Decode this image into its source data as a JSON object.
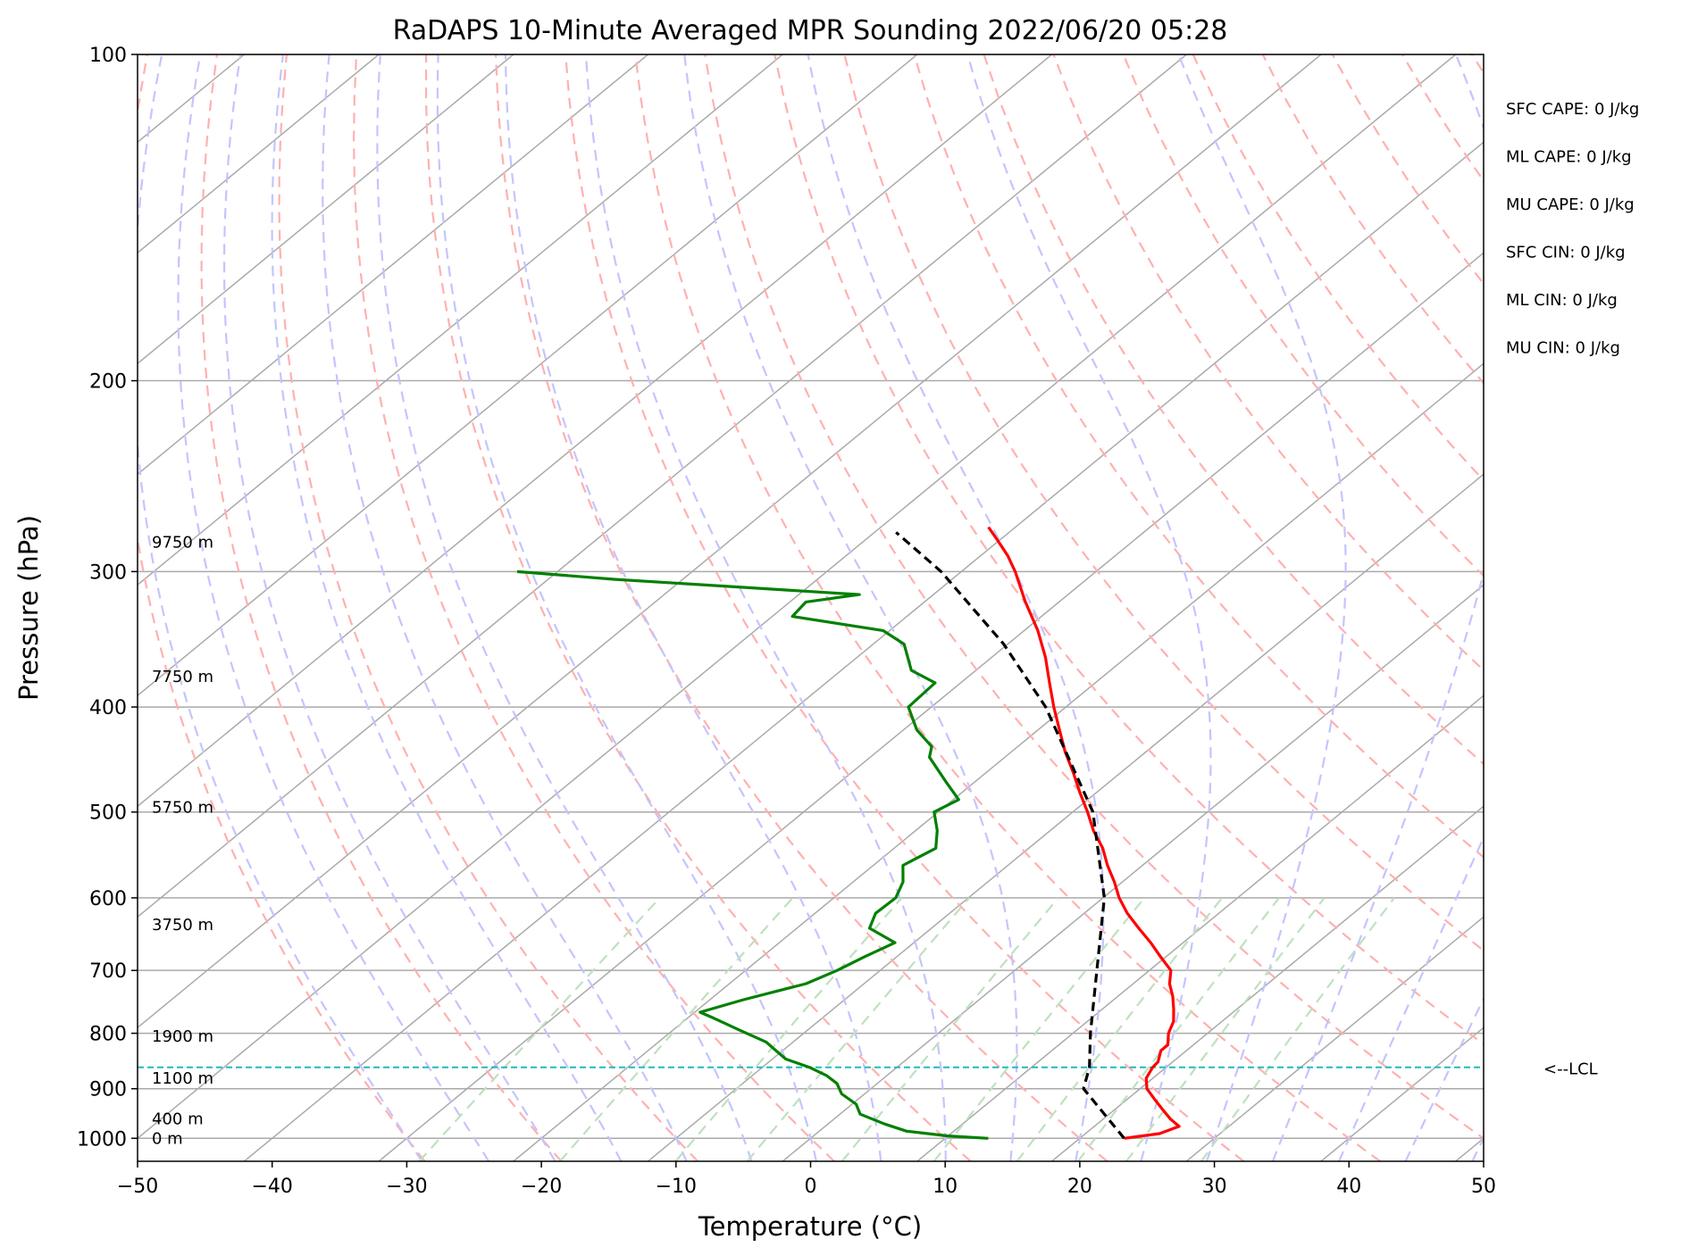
{
  "chart_data": {
    "type": "line",
    "title": "RaDAPS 10-Minute Averaged MPR Sounding 2022/06/20 05:28",
    "xlabel": "Temperature (°C)",
    "ylabel": "Pressure (hPa)",
    "xlim": [
      -50,
      50
    ],
    "ylim": [
      1050,
      100
    ],
    "y_scale": "log",
    "skew": "skew-T",
    "grid": true,
    "x_ticks": [
      -50,
      -40,
      -30,
      -20,
      -10,
      0,
      10,
      20,
      30,
      40,
      50
    ],
    "x_tick_labels": [
      "−50",
      "−40",
      "−30",
      "−20",
      "−10",
      "0",
      "10",
      "20",
      "30",
      "40",
      "50"
    ],
    "y_ticks": [
      1000,
      900,
      800,
      700,
      600,
      500,
      400,
      300,
      200,
      100
    ],
    "y_tick_labels": [
      "1000",
      "900",
      "800",
      "700",
      "600",
      "500",
      "400",
      "300",
      "200",
      "100"
    ],
    "series": [
      {
        "role": "temperature",
        "color": "#ff0000",
        "points": [
          [
            1000,
            23.3
          ],
          [
            990,
            25.5
          ],
          [
            975,
            26.3
          ],
          [
            960,
            25.0
          ],
          [
            940,
            23.5
          ],
          [
            920,
            22.0
          ],
          [
            900,
            20.5
          ],
          [
            880,
            19.5
          ],
          [
            860,
            19.0
          ],
          [
            850,
            18.9
          ],
          [
            830,
            18.1
          ],
          [
            820,
            18.1
          ],
          [
            800,
            17.1
          ],
          [
            780,
            16.4
          ],
          [
            760,
            15.3
          ],
          [
            740,
            14.1
          ],
          [
            720,
            12.7
          ],
          [
            700,
            11.6
          ],
          [
            680,
            9.6
          ],
          [
            660,
            7.6
          ],
          [
            640,
            5.4
          ],
          [
            620,
            3.2
          ],
          [
            600,
            1.2
          ],
          [
            580,
            -0.6
          ],
          [
            560,
            -2.6
          ],
          [
            540,
            -4.5
          ],
          [
            520,
            -6.8
          ],
          [
            500,
            -8.9
          ],
          [
            480,
            -11.2
          ],
          [
            460,
            -13.5
          ],
          [
            440,
            -16.0
          ],
          [
            420,
            -18.4
          ],
          [
            400,
            -20.9
          ],
          [
            380,
            -23.4
          ],
          [
            360,
            -26.0
          ],
          [
            340,
            -29.0
          ],
          [
            320,
            -32.5
          ],
          [
            300,
            -36.0
          ],
          [
            290,
            -38.0
          ],
          [
            280,
            -40.3
          ],
          [
            273,
            -42.0
          ]
        ]
      },
      {
        "role": "dewpoint",
        "color": "#008000",
        "points": [
          [
            1000,
            13.2
          ],
          [
            995,
            10.0
          ],
          [
            985,
            6.5
          ],
          [
            970,
            4.2
          ],
          [
            950,
            1.5
          ],
          [
            930,
            0.3
          ],
          [
            910,
            -1.7
          ],
          [
            890,
            -3.0
          ],
          [
            875,
            -4.5
          ],
          [
            860,
            -6.5
          ],
          [
            845,
            -9.0
          ],
          [
            830,
            -10.5
          ],
          [
            815,
            -12.0
          ],
          [
            795,
            -15.0
          ],
          [
            775,
            -18.0
          ],
          [
            765,
            -19.6
          ],
          [
            745,
            -17.5
          ],
          [
            720,
            -14.3
          ],
          [
            700,
            -13.2
          ],
          [
            680,
            -12.4
          ],
          [
            660,
            -11.4
          ],
          [
            640,
            -14.6
          ],
          [
            620,
            -15.5
          ],
          [
            600,
            -15.4
          ],
          [
            580,
            -16.3
          ],
          [
            560,
            -17.8
          ],
          [
            540,
            -16.9
          ],
          [
            520,
            -18.4
          ],
          [
            500,
            -20.3
          ],
          [
            487,
            -19.6
          ],
          [
            470,
            -22.0
          ],
          [
            445,
            -25.6
          ],
          [
            435,
            -26.4
          ],
          [
            420,
            -29.0
          ],
          [
            400,
            -31.7
          ],
          [
            380,
            -31.9
          ],
          [
            370,
            -34.8
          ],
          [
            350,
            -37.7
          ],
          [
            340,
            -40.5
          ],
          [
            330,
            -48.5
          ],
          [
            320,
            -48.8
          ],
          [
            315,
            -45.5
          ],
          [
            305,
            -65.0
          ],
          [
            300,
            -73.0
          ]
        ]
      },
      {
        "role": "parcel",
        "color": "#000000",
        "dashed": true,
        "points": [
          [
            1000,
            23.3
          ],
          [
            900,
            15.8
          ],
          [
            860,
            14.3
          ],
          [
            800,
            11.3
          ],
          [
            700,
            6.1
          ],
          [
            600,
            0.1
          ],
          [
            500,
            -8.5
          ],
          [
            400,
            -21.5
          ],
          [
            350,
            -30.3
          ],
          [
            300,
            -41.5
          ],
          [
            280,
            -47.2
          ],
          [
            276,
            -48.4
          ]
        ]
      }
    ],
    "background_lines": {
      "isotherm_color": "#aaaaaa",
      "dry_adiabat_color": "#ffb0b0",
      "moist_adiabat_color": "#c4c4ff",
      "mixing_ratio_color": "#bfe0bf",
      "lcl_line_color": "#22bbbb"
    },
    "lcl": {
      "pressure": 860,
      "label": "<--LCL"
    },
    "height_labels": [
      {
        "p": 1000,
        "text": "0 m"
      },
      {
        "p": 960,
        "text": "400 m"
      },
      {
        "p": 880,
        "text": "1100 m"
      },
      {
        "p": 805,
        "text": "1900 m"
      },
      {
        "p": 635,
        "text": "3750 m"
      },
      {
        "p": 495,
        "text": "5750 m"
      },
      {
        "p": 375,
        "text": "7750 m"
      },
      {
        "p": 282,
        "text": "9750 m"
      }
    ],
    "indices": [
      "SFC CAPE: 0 J/kg",
      "ML CAPE: 0 J/kg",
      "MU CAPE: 0 J/kg",
      "SFC CIN: 0 J/kg",
      "ML CIN: 0 J/kg",
      "MU CIN: 0 J/kg"
    ]
  }
}
